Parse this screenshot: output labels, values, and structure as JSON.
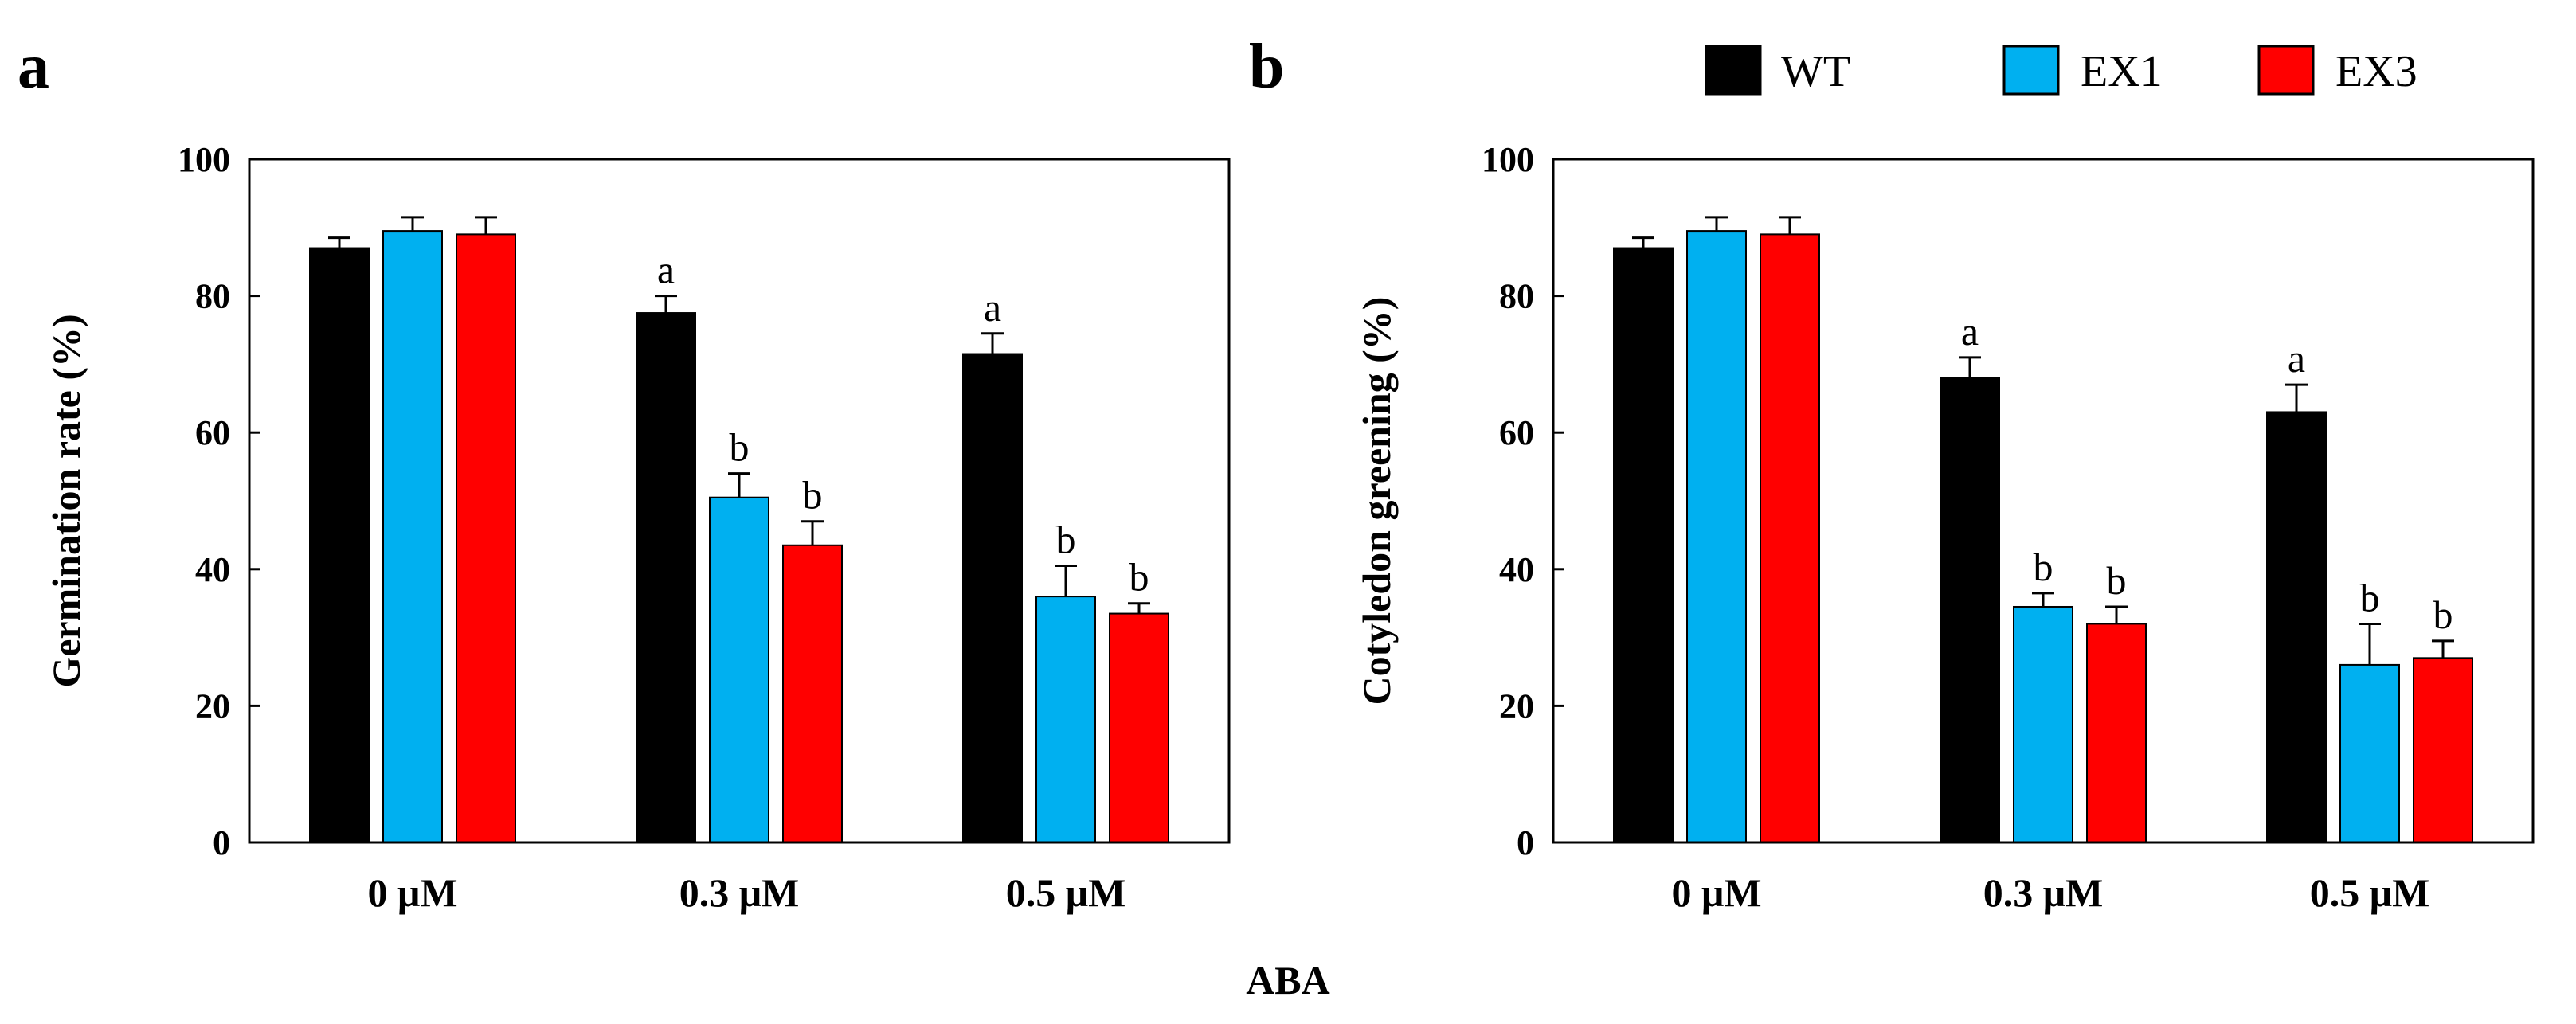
{
  "figure": {
    "panel_a_letter": "a",
    "panel_b_letter": "b",
    "shared_xlabel": "ABA"
  },
  "legend": [
    {
      "label": "WT",
      "color": "#000000"
    },
    {
      "label": "EX1",
      "color": "#00b0f0"
    },
    {
      "label": "EX3",
      "color": "#ff0000"
    }
  ],
  "chart_data": [
    {
      "type": "bar",
      "panel": "a",
      "title": "",
      "xlabel": "",
      "ylabel": "Germination rate (%)",
      "ylim": [
        0,
        100
      ],
      "yticks": [
        0,
        20,
        40,
        60,
        80,
        100
      ],
      "categories": [
        "0 μM",
        "0.3 μM",
        "0.5 μM"
      ],
      "series": [
        {
          "name": "WT",
          "color": "#000000",
          "values": [
            87,
            77.5,
            71.5
          ],
          "errors": [
            1.5,
            2.5,
            3
          ],
          "labels": [
            "",
            "a",
            "a"
          ]
        },
        {
          "name": "EX1",
          "color": "#00b0f0",
          "values": [
            89.5,
            50.5,
            36
          ],
          "errors": [
            2,
            3.5,
            4.5
          ],
          "labels": [
            "",
            "b",
            "b"
          ]
        },
        {
          "name": "EX3",
          "color": "#ff0000",
          "values": [
            89,
            43.5,
            33.5
          ],
          "errors": [
            2.5,
            3.5,
            1.5
          ],
          "labels": [
            "",
            "b",
            "b"
          ]
        }
      ]
    },
    {
      "type": "bar",
      "panel": "b",
      "title": "",
      "xlabel": "",
      "ylabel": "Cotyledon greening (%)",
      "ylim": [
        0,
        100
      ],
      "yticks": [
        0,
        20,
        40,
        60,
        80,
        100
      ],
      "categories": [
        "0 μM",
        "0.3 μM",
        "0.5 μM"
      ],
      "series": [
        {
          "name": "WT",
          "color": "#000000",
          "values": [
            87,
            68,
            63
          ],
          "errors": [
            1.5,
            3,
            4
          ],
          "labels": [
            "",
            "a",
            "a"
          ]
        },
        {
          "name": "EX1",
          "color": "#00b0f0",
          "values": [
            89.5,
            34.5,
            26
          ],
          "errors": [
            2,
            2,
            6
          ],
          "labels": [
            "",
            "b",
            "b"
          ]
        },
        {
          "name": "EX3",
          "color": "#ff0000",
          "values": [
            89,
            32,
            27
          ],
          "errors": [
            2.5,
            2.5,
            2.5
          ],
          "labels": [
            "",
            "b",
            "b"
          ]
        }
      ]
    }
  ]
}
